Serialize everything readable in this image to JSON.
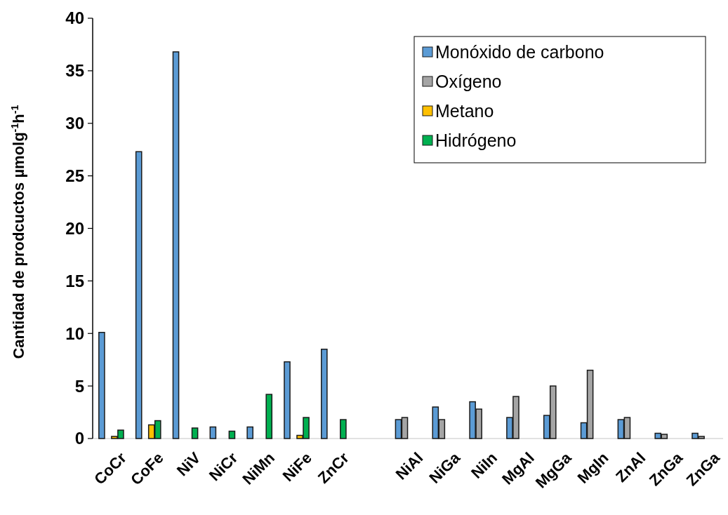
{
  "chart_data": {
    "type": "bar",
    "ylabel": "Cantidad de prodcuctos µmolg$^{-1}$h$^{-1}$",
    "categories": [
      "CoCr",
      "CoFe",
      "NiV",
      "NiCr",
      "NiMn",
      "NiFe",
      "ZnCr",
      null,
      "NiAl",
      "NiGa",
      "NiIn",
      "MgAl",
      "MgGa",
      "MgIn",
      "ZnAl",
      "ZnGa",
      "ZnGa"
    ],
    "series": [
      {
        "name": "Monóxido de carbono",
        "color": "#5b9bd5",
        "values": [
          10.1,
          27.3,
          36.8,
          1.1,
          1.1,
          7.3,
          8.5,
          null,
          1.8,
          3.0,
          3.5,
          2.0,
          2.2,
          1.5,
          1.8,
          0.5,
          0.5
        ]
      },
      {
        "name": "Oxígeno",
        "color": "#a5a5a5",
        "values": [
          null,
          null,
          null,
          null,
          null,
          null,
          null,
          null,
          2.0,
          1.8,
          2.8,
          4.0,
          5.0,
          6.5,
          2.0,
          0.4,
          0.2
        ]
      },
      {
        "name": "Metano",
        "color": "#ffc000",
        "values": [
          0.2,
          1.3,
          null,
          null,
          null,
          0.3,
          null,
          null,
          null,
          null,
          null,
          null,
          null,
          null,
          null,
          null,
          null
        ]
      },
      {
        "name": "Hidrógeno",
        "color": "#00b050",
        "values": [
          0.8,
          1.7,
          1.0,
          0.7,
          4.2,
          2.0,
          1.8,
          null,
          null,
          null,
          null,
          null,
          null,
          null,
          null,
          null,
          null
        ]
      }
    ],
    "ylim": [
      0,
      40
    ],
    "yticks": [
      0,
      5,
      10,
      15,
      20,
      25,
      30,
      35,
      40
    ],
    "grid": false,
    "legend": "top right"
  }
}
